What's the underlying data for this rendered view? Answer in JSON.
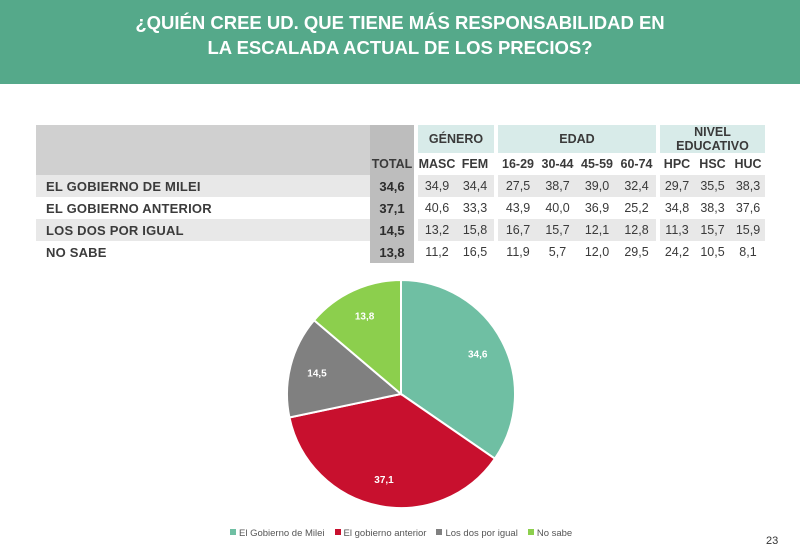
{
  "title": {
    "line1": "¿QUIÉN CREE UD. QUE TIENE MÁS RESPONSABILIDAD EN",
    "line2": "LA ESCALADA ACTUAL DE LOS PRECIOS?"
  },
  "colors": {
    "banner": "#55a98a",
    "milei": "#6fbfa3",
    "anterior": "#c8102e",
    "iguales": "#808080",
    "nosabe": "#8ccf4d"
  },
  "table": {
    "groups": {
      "genero": "GÉNERO",
      "edad": "EDAD",
      "nivel": "NIVEL EDUCATIVO"
    },
    "columns": {
      "total": "TOTAL",
      "masc": "MASC",
      "fem": "FEM",
      "a1629": "16-29",
      "a3044": "30-44",
      "a4559": "45-59",
      "a6074": "60-74",
      "hpc": "HPC",
      "hsc": "HSC",
      "huc": "HUC"
    },
    "rows": [
      {
        "label": "EL GOBIERNO DE MILEI",
        "total": "34,6",
        "masc": "34,9",
        "fem": "34,4",
        "a1629": "27,5",
        "a3044": "38,7",
        "a4559": "39,0",
        "a6074": "32,4",
        "hpc": "29,7",
        "hsc": "35,5",
        "huc": "38,3"
      },
      {
        "label": "EL GOBIERNO ANTERIOR",
        "total": "37,1",
        "masc": "40,6",
        "fem": "33,3",
        "a1629": "43,9",
        "a3044": "40,0",
        "a4559": "36,9",
        "a6074": "25,2",
        "hpc": "34,8",
        "hsc": "38,3",
        "huc": "37,6"
      },
      {
        "label": "LOS DOS POR IGUAL",
        "total": "14,5",
        "masc": "13,2",
        "fem": "15,8",
        "a1629": "16,7",
        "a3044": "15,7",
        "a4559": "12,1",
        "a6074": "12,8",
        "hpc": "11,3",
        "hsc": "15,7",
        "huc": "15,9"
      },
      {
        "label": "NO SABE",
        "total": "13,8",
        "masc": "11,2",
        "fem": "16,5",
        "a1629": "11,9",
        "a3044": "5,7",
        "a4559": "12,0",
        "a6074": "29,5",
        "hpc": "24,2",
        "hsc": "10,5",
        "huc": "8,1"
      }
    ]
  },
  "chart_data": {
    "type": "pie",
    "slices": [
      {
        "name": "El Gobierno de Milei",
        "value": 34.6,
        "label": "34,6",
        "color": "#6fbfa3"
      },
      {
        "name": "El gobierno anterior",
        "value": 37.1,
        "label": "37,1",
        "color": "#c8102e"
      },
      {
        "name": "Los dos por igual",
        "value": 14.5,
        "label": "14,5",
        "color": "#808080"
      },
      {
        "name": "No sabe",
        "value": 13.8,
        "label": "13,8",
        "color": "#8ccf4d"
      }
    ],
    "legend_position": "bottom"
  },
  "page_number": "23"
}
